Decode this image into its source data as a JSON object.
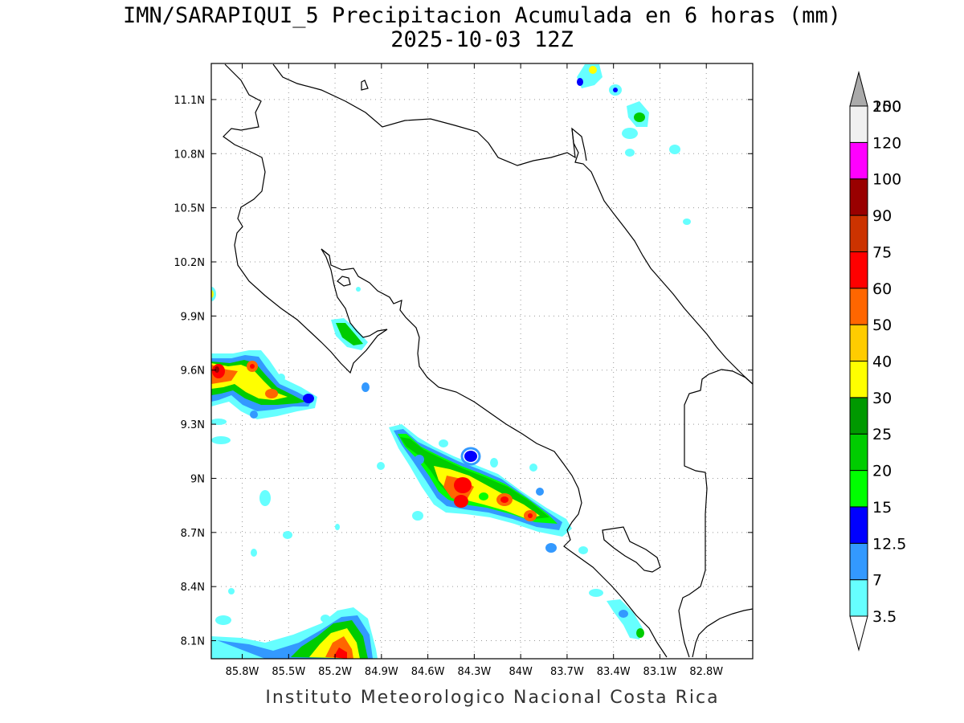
{
  "title": {
    "line1": "IMN/SARAPIQUI_5 Precipitacion Acumulada en 6 horas (mm)",
    "line2": "2025-10-03 12Z"
  },
  "footer": "Instituto Meteorologico Nacional Costa Rica",
  "map": {
    "lon_range": [
      -86.0,
      -82.5
    ],
    "lat_range": [
      8.0,
      11.3
    ],
    "lon_ticks": [
      {
        "value": -85.8,
        "label": "85.8W"
      },
      {
        "value": -85.5,
        "label": "85.5W"
      },
      {
        "value": -85.2,
        "label": "85.2W"
      },
      {
        "value": -84.9,
        "label": "84.9W"
      },
      {
        "value": -84.6,
        "label": "84.6W"
      },
      {
        "value": -84.3,
        "label": "84.3W"
      },
      {
        "value": -84.0,
        "label": "84W"
      },
      {
        "value": -83.7,
        "label": "83.7W"
      },
      {
        "value": -83.4,
        "label": "83.4W"
      },
      {
        "value": -83.1,
        "label": "83.1W"
      },
      {
        "value": -82.8,
        "label": "82.8W"
      }
    ],
    "lat_ticks": [
      {
        "value": 8.1,
        "label": "8.1N"
      },
      {
        "value": 8.4,
        "label": "8.4N"
      },
      {
        "value": 8.7,
        "label": "8.7N"
      },
      {
        "value": 9.0,
        "label": "9N"
      },
      {
        "value": 9.3,
        "label": "9.3N"
      },
      {
        "value": 9.6,
        "label": "9.6N"
      },
      {
        "value": 9.9,
        "label": "9.9N"
      },
      {
        "value": 10.2,
        "label": "10.2N"
      },
      {
        "value": 10.5,
        "label": "10.5N"
      },
      {
        "value": 10.8,
        "label": "10.8N"
      },
      {
        "value": 11.1,
        "label": "11.1N"
      }
    ],
    "grid": true
  },
  "legend": {
    "levels": [
      {
        "label": "3.5",
        "color": "#66ffff"
      },
      {
        "label": "7",
        "color": "#3399ff"
      },
      {
        "label": "12.5",
        "color": "#0000ff"
      },
      {
        "label": "15",
        "color": "#00ff00"
      },
      {
        "label": "20",
        "color": "#00cc00"
      },
      {
        "label": "25",
        "color": "#009900"
      },
      {
        "label": "30",
        "color": "#ffff00"
      },
      {
        "label": "40",
        "color": "#ffcc00"
      },
      {
        "label": "50",
        "color": "#ff6600"
      },
      {
        "label": "60",
        "color": "#ff0000"
      },
      {
        "label": "75",
        "color": "#cc3300"
      },
      {
        "label": "90",
        "color": "#990000"
      },
      {
        "label": "100",
        "color": "#ff00ff"
      },
      {
        "label": "120",
        "color": "#9933cc"
      },
      {
        "label": "150",
        "color": "#f0f0f0"
      },
      {
        "label": "200",
        "color": "#aaaaaa"
      }
    ]
  }
}
